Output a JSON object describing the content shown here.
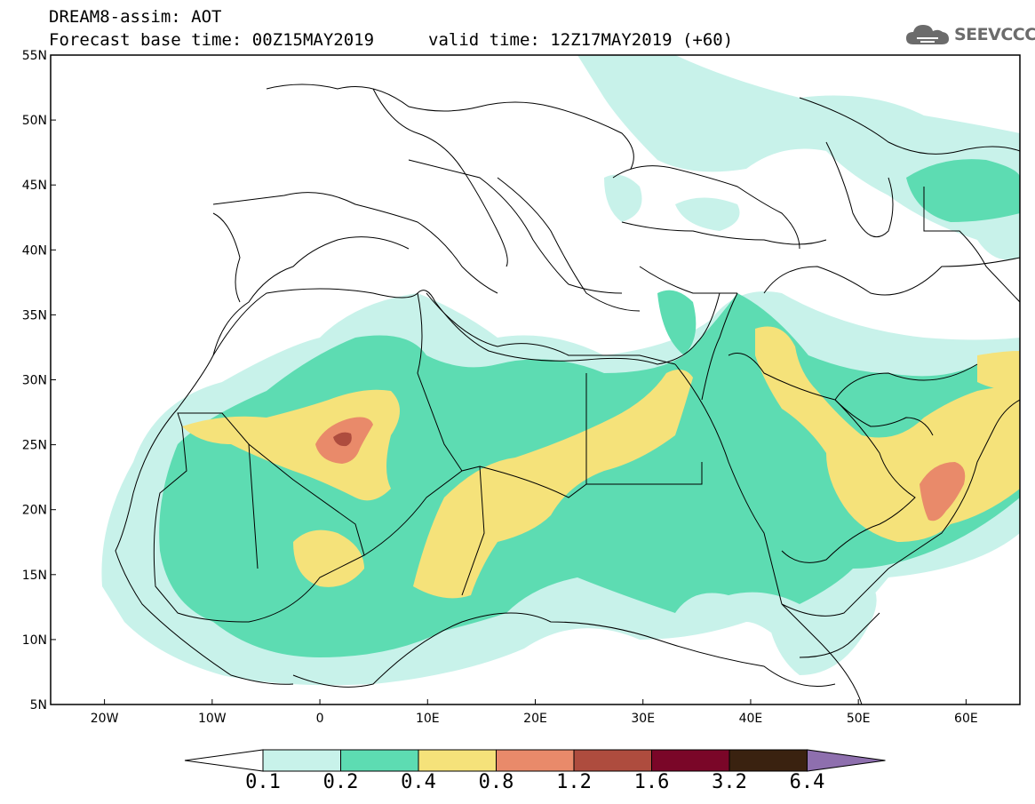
{
  "header": {
    "line1": "DREAM8-assim: AOT",
    "line2": "Forecast base time: 00Z15MAY2019",
    "valid": "valid time: 12Z17MAY2019 (+60)"
  },
  "logo": {
    "text": "SEEVCCC",
    "icon": "cloud-icon"
  },
  "map": {
    "lon_range": [
      -25,
      65
    ],
    "lat_range": [
      5,
      55
    ],
    "x_ticks": [
      "20W",
      "10W",
      "0",
      "10E",
      "20E",
      "30E",
      "40E",
      "50E",
      "60E"
    ],
    "y_ticks": [
      "5N",
      "10N",
      "15N",
      "20N",
      "25N",
      "30N",
      "35N",
      "40N",
      "45N",
      "50N",
      "55N"
    ]
  },
  "colorbar": {
    "labels": [
      "0.1",
      "0.2",
      "0.4",
      "0.8",
      "1.2",
      "1.6",
      "3.2",
      "6.4"
    ],
    "colors": [
      "#c8f2ea",
      "#5ddcb2",
      "#f5e27a",
      "#e98a6a",
      "#ae4c3e",
      "#7a0628",
      "#3a2210",
      "#8e6fae"
    ],
    "low_color": "#ffffff"
  }
}
